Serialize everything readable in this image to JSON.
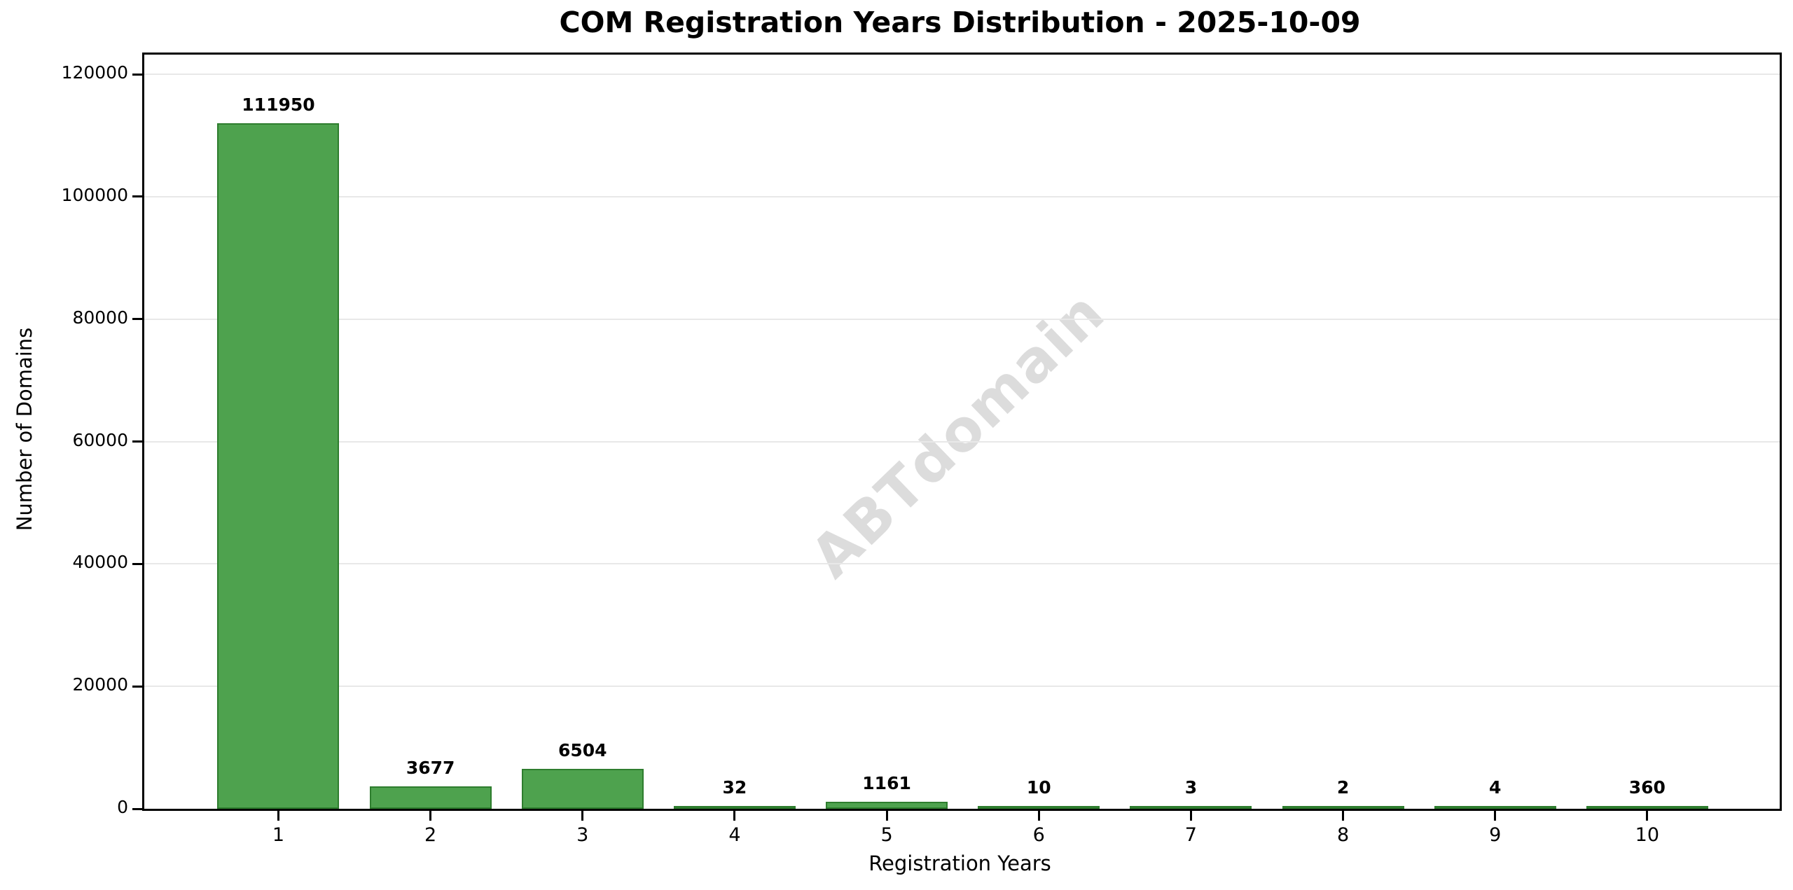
{
  "chart_data": {
    "type": "bar",
    "title": "COM Registration Years Distribution - 2025-10-09",
    "categories": [
      "1",
      "2",
      "3",
      "4",
      "5",
      "6",
      "7",
      "8",
      "9",
      "10"
    ],
    "values": [
      111950,
      3677,
      6504,
      32,
      1161,
      10,
      3,
      2,
      4,
      360
    ],
    "value_labels": [
      "111950",
      "3677",
      "6504",
      "32",
      "1161",
      "10",
      "3",
      "2",
      "4",
      "360"
    ],
    "xlabel": "Registration Years",
    "ylabel": "Number of Domains",
    "ylim": [
      0,
      120000
    ],
    "yticks": [
      0,
      20000,
      40000,
      60000,
      80000,
      100000,
      120000
    ],
    "ytick_labels": [
      "0",
      "20000",
      "40000",
      "60000",
      "80000",
      "100000",
      "120000"
    ],
    "grid": "horizontal",
    "legend": "none",
    "watermark": "ABTdomain",
    "colors": {
      "bar_fill": "#4ea24e",
      "bar_edge": "#2e7d2e",
      "gridline": "#e8e8e8",
      "watermark": "#dcdcdc",
      "text": "#000000",
      "background": "#ffffff"
    }
  }
}
